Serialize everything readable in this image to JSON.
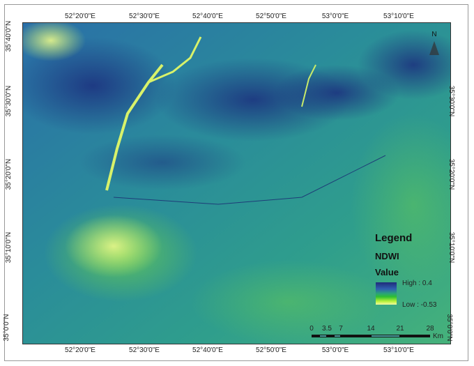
{
  "map": {
    "top_ticks": [
      "52°20'0\"E",
      "52°30'0\"E",
      "52°40'0\"E",
      "52°50'0\"E",
      "53°0'0\"E",
      "53°10'0\"E"
    ],
    "bottom_ticks": [
      "52°20'0\"E",
      "52°30'0\"E",
      "52°40'0\"E",
      "52°50'0\"E",
      "53°0'0\"E",
      "53°10'0\"E"
    ],
    "left_ticks": [
      "35°40'0\"N",
      "35°30'0\"N",
      "35°20'0\"N",
      "35°10'0\"N",
      "35°0'0\"N"
    ],
    "right_ticks": [
      "35°30'0\"N",
      "35°20'0\"N",
      "35°10'0\"N",
      "35°0'0\"N"
    ],
    "north_arrow_label": "N",
    "colors": {
      "high": "#1f2b7a",
      "mid": "#2a9a8a",
      "low": "#f4f9a0"
    }
  },
  "legend": {
    "title": "Legend",
    "layer": "NDWI",
    "value_label": "Value",
    "high": "High : 0.4",
    "low": "Low : -0.53"
  },
  "scale_bar": {
    "labels": [
      "0",
      "3.5",
      "7",
      "14",
      "21",
      "28"
    ],
    "unit": "Km"
  }
}
